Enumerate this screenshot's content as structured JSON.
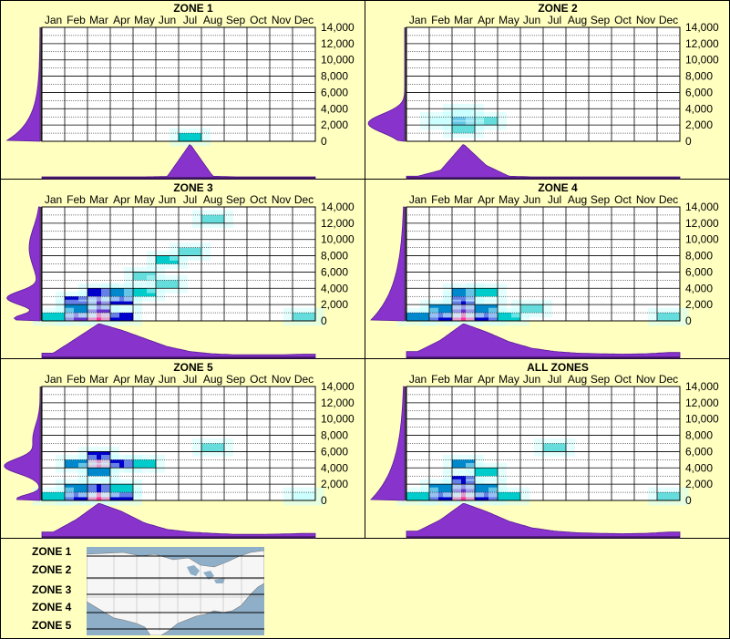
{
  "chart_data": [
    {
      "type": "heatmap",
      "title": "ZONE 1",
      "x_categories": [
        "Jan",
        "Feb",
        "Mar",
        "Apr",
        "May",
        "Jun",
        "Jul",
        "Aug",
        "Sep",
        "Oct",
        "Nov",
        "Dec"
      ],
      "y_ticks": [
        "14,000",
        "12,000",
        "10,000",
        "8,000",
        "6,000",
        "4,000",
        "2,000",
        "0"
      ],
      "ylim": [
        0,
        14000
      ],
      "cells": [
        {
          "month": "Jul",
          "elevation": 0,
          "level": 0.25
        }
      ],
      "month_distribution": [
        0,
        0,
        0,
        0,
        0,
        0.01,
        1.0,
        0.02,
        0,
        0,
        0,
        0
      ],
      "elevation_distribution": {
        "profile": "low",
        "peak_elevation": 0,
        "peak_width": 0.18
      }
    },
    {
      "type": "heatmap",
      "title": "ZONE 2",
      "x_categories": [
        "Jan",
        "Feb",
        "Mar",
        "Apr",
        "May",
        "Jun",
        "Jul",
        "Aug",
        "Sep",
        "Oct",
        "Nov",
        "Dec"
      ],
      "y_ticks": [
        "14,000",
        "12,000",
        "10,000",
        "8,000",
        "6,000",
        "4,000",
        "2,000",
        "0"
      ],
      "ylim": [
        0,
        14000
      ],
      "cells": [
        {
          "month": "Feb",
          "elevation": 2000,
          "level": 0.08
        },
        {
          "month": "Mar",
          "elevation": 2000,
          "level": 0.35
        },
        {
          "month": "Apr",
          "elevation": 2000,
          "level": 0.12
        },
        {
          "month": "Mar",
          "elevation": 1000,
          "level": 0.1
        },
        {
          "month": "Mar",
          "elevation": 3000,
          "level": 0.08
        }
      ],
      "month_distribution": [
        0.02,
        0.2,
        1.0,
        0.35,
        0.02,
        0,
        0,
        0,
        0,
        0,
        0,
        0
      ],
      "elevation_distribution": {
        "profile": "single",
        "peak_elevation": 2200,
        "peak_width": 0.35
      }
    },
    {
      "type": "heatmap",
      "title": "ZONE 3",
      "x_categories": [
        "Jan",
        "Feb",
        "Mar",
        "Apr",
        "May",
        "Jun",
        "Jul",
        "Aug",
        "Sep",
        "Oct",
        "Nov",
        "Dec"
      ],
      "y_ticks": [
        "14,000",
        "12,000",
        "10,000",
        "8,000",
        "6,000",
        "4,000",
        "2,000",
        "0"
      ],
      "ylim": [
        0,
        14000
      ],
      "cells": [
        {
          "month": "Mar",
          "elevation": 0,
          "level": 1.0
        },
        {
          "month": "Feb",
          "elevation": 0,
          "level": 0.7
        },
        {
          "month": "Apr",
          "elevation": 0,
          "level": 0.55
        },
        {
          "month": "Mar",
          "elevation": 1000,
          "level": 0.75
        },
        {
          "month": "Mar",
          "elevation": 2000,
          "level": 0.85
        },
        {
          "month": "Apr",
          "elevation": 2000,
          "level": 0.6
        },
        {
          "month": "Feb",
          "elevation": 2000,
          "level": 0.5
        },
        {
          "month": "Mar",
          "elevation": 3000,
          "level": 0.5
        },
        {
          "month": "Apr",
          "elevation": 3000,
          "level": 0.45
        },
        {
          "month": "May",
          "elevation": 3000,
          "level": 0.25
        },
        {
          "month": "Feb",
          "elevation": 1000,
          "level": 0.45
        },
        {
          "month": "Jan",
          "elevation": 0,
          "level": 0.25
        },
        {
          "month": "May",
          "elevation": 5000,
          "level": 0.15
        },
        {
          "month": "Jun",
          "elevation": 7000,
          "level": 0.2
        },
        {
          "month": "Jul",
          "elevation": 8000,
          "level": 0.12
        },
        {
          "month": "Aug",
          "elevation": 12000,
          "level": 0.1
        },
        {
          "month": "Jun",
          "elevation": 4000,
          "level": 0.1
        },
        {
          "month": "Dec",
          "elevation": 0,
          "level": 0.1
        }
      ],
      "month_distribution": [
        0.1,
        0.55,
        1.0,
        0.8,
        0.55,
        0.3,
        0.15,
        0.08,
        0.05,
        0.05,
        0.05,
        0.07
      ],
      "elevation_distribution": {
        "profile": "bimodal",
        "peak_elevation": 2500,
        "peak_width": 0.3
      }
    },
    {
      "type": "heatmap",
      "title": "ZONE 4",
      "x_categories": [
        "Jan",
        "Feb",
        "Mar",
        "Apr",
        "May",
        "Jun",
        "Jul",
        "Aug",
        "Sep",
        "Oct",
        "Nov",
        "Dec"
      ],
      "y_ticks": [
        "14,000",
        "12,000",
        "10,000",
        "8,000",
        "6,000",
        "4,000",
        "2,000",
        "0"
      ],
      "ylim": [
        0,
        14000
      ],
      "cells": [
        {
          "month": "Mar",
          "elevation": 0,
          "level": 1.0
        },
        {
          "month": "Feb",
          "elevation": 0,
          "level": 0.65
        },
        {
          "month": "Apr",
          "elevation": 0,
          "level": 0.6
        },
        {
          "month": "Mar",
          "elevation": 1000,
          "level": 0.75
        },
        {
          "month": "Mar",
          "elevation": 2000,
          "level": 0.55
        },
        {
          "month": "Feb",
          "elevation": 1000,
          "level": 0.45
        },
        {
          "month": "Apr",
          "elevation": 1000,
          "level": 0.45
        },
        {
          "month": "Jan",
          "elevation": 0,
          "level": 0.35
        },
        {
          "month": "May",
          "elevation": 0,
          "level": 0.3
        },
        {
          "month": "Mar",
          "elevation": 3000,
          "level": 0.35
        },
        {
          "month": "Apr",
          "elevation": 3000,
          "level": 0.3
        },
        {
          "month": "Jun",
          "elevation": 1000,
          "level": 0.15
        },
        {
          "month": "Dec",
          "elevation": 0,
          "level": 0.15
        }
      ],
      "month_distribution": [
        0.15,
        0.5,
        1.0,
        0.75,
        0.45,
        0.25,
        0.15,
        0.1,
        0.08,
        0.07,
        0.08,
        0.12
      ],
      "elevation_distribution": {
        "profile": "low",
        "peak_elevation": 0,
        "peak_width": 0.3
      }
    },
    {
      "type": "heatmap",
      "title": "ZONE 5",
      "x_categories": [
        "Jan",
        "Feb",
        "Mar",
        "Apr",
        "May",
        "Jun",
        "Jul",
        "Aug",
        "Sep",
        "Oct",
        "Nov",
        "Dec"
      ],
      "y_ticks": [
        "14,000",
        "12,000",
        "10,000",
        "8,000",
        "6,000",
        "4,000",
        "2,000",
        "0"
      ],
      "ylim": [
        0,
        14000
      ],
      "cells": [
        {
          "month": "Mar",
          "elevation": 0,
          "level": 1.0
        },
        {
          "month": "Feb",
          "elevation": 0,
          "level": 0.6
        },
        {
          "month": "Apr",
          "elevation": 0,
          "level": 0.55
        },
        {
          "month": "Mar",
          "elevation": 4000,
          "level": 0.9
        },
        {
          "month": "Mar",
          "elevation": 5000,
          "level": 0.6
        },
        {
          "month": "Apr",
          "elevation": 4000,
          "level": 0.6
        },
        {
          "month": "Feb",
          "elevation": 4000,
          "level": 0.45
        },
        {
          "month": "Mar",
          "elevation": 3000,
          "level": 0.45
        },
        {
          "month": "Mar",
          "elevation": 1000,
          "level": 0.55
        },
        {
          "month": "Feb",
          "elevation": 1000,
          "level": 0.35
        },
        {
          "month": "Apr",
          "elevation": 1000,
          "level": 0.3
        },
        {
          "month": "Jan",
          "elevation": 0,
          "level": 0.2
        },
        {
          "month": "May",
          "elevation": 4000,
          "level": 0.2
        },
        {
          "month": "Aug",
          "elevation": 6000,
          "level": 0.1
        },
        {
          "month": "Dec",
          "elevation": 0,
          "level": 0.08
        }
      ],
      "month_distribution": [
        0.12,
        0.5,
        1.0,
        0.75,
        0.4,
        0.2,
        0.12,
        0.08,
        0.05,
        0.05,
        0.06,
        0.08
      ],
      "elevation_distribution": {
        "profile": "bimodal-low",
        "peak_elevation": 4200,
        "peak_width": 0.3
      }
    },
    {
      "type": "heatmap",
      "title": "ALL ZONES",
      "x_categories": [
        "Jan",
        "Feb",
        "Mar",
        "Apr",
        "May",
        "Jun",
        "Jul",
        "Aug",
        "Sep",
        "Oct",
        "Nov",
        "Dec"
      ],
      "y_ticks": [
        "14,000",
        "12,000",
        "10,000",
        "8,000",
        "6,000",
        "4,000",
        "2,000",
        "0"
      ],
      "ylim": [
        0,
        14000
      ],
      "cells": [
        {
          "month": "Mar",
          "elevation": 0,
          "level": 1.0
        },
        {
          "month": "Feb",
          "elevation": 0,
          "level": 0.65
        },
        {
          "month": "Apr",
          "elevation": 0,
          "level": 0.6
        },
        {
          "month": "Mar",
          "elevation": 1000,
          "level": 0.75
        },
        {
          "month": "Mar",
          "elevation": 2000,
          "level": 0.55
        },
        {
          "month": "Feb",
          "elevation": 1000,
          "level": 0.45
        },
        {
          "month": "Apr",
          "elevation": 1000,
          "level": 0.45
        },
        {
          "month": "Mar",
          "elevation": 4000,
          "level": 0.4
        },
        {
          "month": "Apr",
          "elevation": 3000,
          "level": 0.3
        },
        {
          "month": "Jan",
          "elevation": 0,
          "level": 0.3
        },
        {
          "month": "May",
          "elevation": 0,
          "level": 0.25
        },
        {
          "month": "Jul",
          "elevation": 6000,
          "level": 0.12
        },
        {
          "month": "Dec",
          "elevation": 0,
          "level": 0.12
        }
      ],
      "month_distribution": [
        0.15,
        0.5,
        1.0,
        0.75,
        0.45,
        0.25,
        0.15,
        0.1,
        0.08,
        0.07,
        0.08,
        0.12
      ],
      "elevation_distribution": {
        "profile": "low",
        "peak_elevation": 0,
        "peak_width": 0.3
      }
    }
  ],
  "legend": {
    "zones": [
      "ZONE 1",
      "ZONE 2",
      "ZONE 3",
      "ZONE 4",
      "ZONE 5"
    ]
  },
  "colors": {
    "background": "#ffffc0",
    "distribution_fill": "#8833cc",
    "distribution_stroke": "#5a1a99",
    "heat_low": "#ccffff",
    "heat_mid": "#00cccc",
    "heat_high": "#0000cc",
    "heat_peak": "#ff3399",
    "map_water": "#8fafc8",
    "map_land": "#f8f8f8"
  }
}
